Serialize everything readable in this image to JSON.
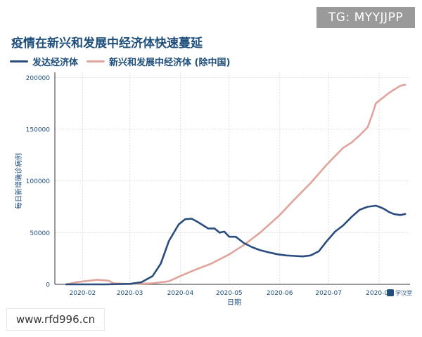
{
  "badge": {
    "text": "TG: MYYJJPP"
  },
  "watermark": {
    "text": "www.rfd996.cn"
  },
  "logo": {
    "text": "学汉堂"
  },
  "colors": {
    "developed": "#2b4c7e",
    "emerging": "#e0a49c",
    "text": "#1e4e7c",
    "grid": "#d9d9d9"
  },
  "chart_data": {
    "type": "line",
    "title": "疫情在新兴和发展中经济体快速蔓延",
    "xlabel": "日期",
    "ylabel": "每日新增确诊病例",
    "ylim": [
      0,
      205000
    ],
    "xlim": [
      "2020-01-15",
      "2020-08-20"
    ],
    "x_ticks": [
      "2020-02",
      "2020-03",
      "2020-04",
      "2020-05",
      "2020-06",
      "2020-07",
      "2020-08"
    ],
    "y_ticks": [
      0,
      50000,
      100000,
      150000,
      200000
    ],
    "grid": true,
    "legend_position": "top-left",
    "series": [
      {
        "name": "发达经济体",
        "color": "#2b4c7e",
        "points": [
          [
            "2020-01-22",
            0
          ],
          [
            "2020-02-15",
            0
          ],
          [
            "2020-03-01",
            500
          ],
          [
            "2020-03-08",
            2000
          ],
          [
            "2020-03-15",
            8000
          ],
          [
            "2020-03-20",
            20000
          ],
          [
            "2020-03-25",
            42000
          ],
          [
            "2020-03-31",
            58000
          ],
          [
            "2020-04-04",
            63000
          ],
          [
            "2020-04-08",
            63500
          ],
          [
            "2020-04-12",
            60000
          ],
          [
            "2020-04-18",
            54000
          ],
          [
            "2020-04-22",
            54000
          ],
          [
            "2020-04-25",
            50000
          ],
          [
            "2020-04-28",
            51000
          ],
          [
            "2020-05-01",
            46000
          ],
          [
            "2020-05-05",
            46000
          ],
          [
            "2020-05-10",
            40000
          ],
          [
            "2020-05-15",
            36000
          ],
          [
            "2020-05-20",
            33000
          ],
          [
            "2020-05-25",
            31000
          ],
          [
            "2020-05-31",
            29000
          ],
          [
            "2020-06-05",
            28000
          ],
          [
            "2020-06-10",
            27500
          ],
          [
            "2020-06-15",
            27000
          ],
          [
            "2020-06-20",
            28000
          ],
          [
            "2020-06-25",
            32000
          ],
          [
            "2020-06-30",
            42000
          ],
          [
            "2020-07-05",
            51000
          ],
          [
            "2020-07-10",
            57000
          ],
          [
            "2020-07-15",
            65000
          ],
          [
            "2020-07-20",
            72000
          ],
          [
            "2020-07-25",
            75000
          ],
          [
            "2020-07-30",
            76000
          ],
          [
            "2020-08-01",
            75000
          ],
          [
            "2020-08-04",
            73000
          ],
          [
            "2020-08-07",
            70000
          ],
          [
            "2020-08-10",
            68000
          ],
          [
            "2020-08-14",
            67000
          ],
          [
            "2020-08-17",
            68000
          ]
        ]
      },
      {
        "name": "新兴和发展中经济体 (除中国)",
        "color": "#e0a49c",
        "points": [
          [
            "2020-01-22",
            0
          ],
          [
            "2020-01-28",
            2000
          ],
          [
            "2020-02-05",
            3500
          ],
          [
            "2020-02-10",
            4500
          ],
          [
            "2020-02-17",
            3500
          ],
          [
            "2020-02-20",
            1000
          ],
          [
            "2020-03-01",
            400
          ],
          [
            "2020-03-15",
            1000
          ],
          [
            "2020-03-25",
            3000
          ],
          [
            "2020-04-01",
            8000
          ],
          [
            "2020-04-10",
            14000
          ],
          [
            "2020-04-20",
            20000
          ],
          [
            "2020-05-01",
            29000
          ],
          [
            "2020-05-10",
            38000
          ],
          [
            "2020-05-20",
            50000
          ],
          [
            "2020-06-01",
            67000
          ],
          [
            "2020-06-10",
            82000
          ],
          [
            "2020-06-20",
            98000
          ],
          [
            "2020-06-30",
            116000
          ],
          [
            "2020-07-05",
            124000
          ],
          [
            "2020-07-10",
            132000
          ],
          [
            "2020-07-15",
            137000
          ],
          [
            "2020-07-20",
            144000
          ],
          [
            "2020-07-25",
            152000
          ],
          [
            "2020-07-28",
            165000
          ],
          [
            "2020-07-30",
            175000
          ],
          [
            "2020-08-03",
            180000
          ],
          [
            "2020-08-07",
            185000
          ],
          [
            "2020-08-10",
            188000
          ],
          [
            "2020-08-14",
            192000
          ],
          [
            "2020-08-17",
            193000
          ]
        ]
      }
    ]
  }
}
